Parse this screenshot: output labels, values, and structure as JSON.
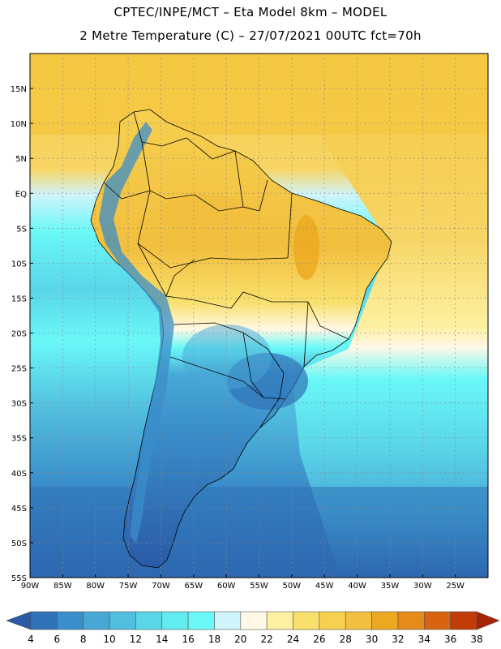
{
  "header": {
    "line1": "CPTEC/INPE/MCT –  Eta Model 8km – MODEL",
    "line2": "2 Metre Temperature (C) – 27/07/2021 00UTC fct=70h"
  },
  "map": {
    "region": "South America",
    "lon_range": [
      -90,
      -20
    ],
    "lat_range": [
      -55,
      20
    ],
    "grid": "dotted",
    "lat_ticks": [
      "15N",
      "10N",
      "5N",
      "EQ",
      "5S",
      "10S",
      "15S",
      "20S",
      "25S",
      "30S",
      "35S",
      "40S",
      "45S",
      "50S",
      "55S"
    ],
    "lon_ticks": [
      "90W",
      "85W",
      "80W",
      "75W",
      "70W",
      "65W",
      "60W",
      "55W",
      "50W",
      "45W",
      "40W",
      "35W",
      "30W",
      "25W"
    ]
  },
  "colorbar": {
    "labels": [
      "4",
      "6",
      "8",
      "10",
      "12",
      "14",
      "16",
      "18",
      "20",
      "22",
      "24",
      "26",
      "28",
      "30",
      "32",
      "34",
      "36",
      "38"
    ],
    "colors": [
      "#2a5aa6",
      "#2f72b8",
      "#3a8ec9",
      "#47a8d6",
      "#52bedf",
      "#5ad6e8",
      "#62ecf0",
      "#6af8f8",
      "#cff4fb",
      "#fff8e6",
      "#fdf0a0",
      "#f9e06c",
      "#f6d050",
      "#f2bf3e",
      "#eca820",
      "#e68a1a",
      "#d86412",
      "#c23c0a",
      "#a82204"
    ]
  }
}
